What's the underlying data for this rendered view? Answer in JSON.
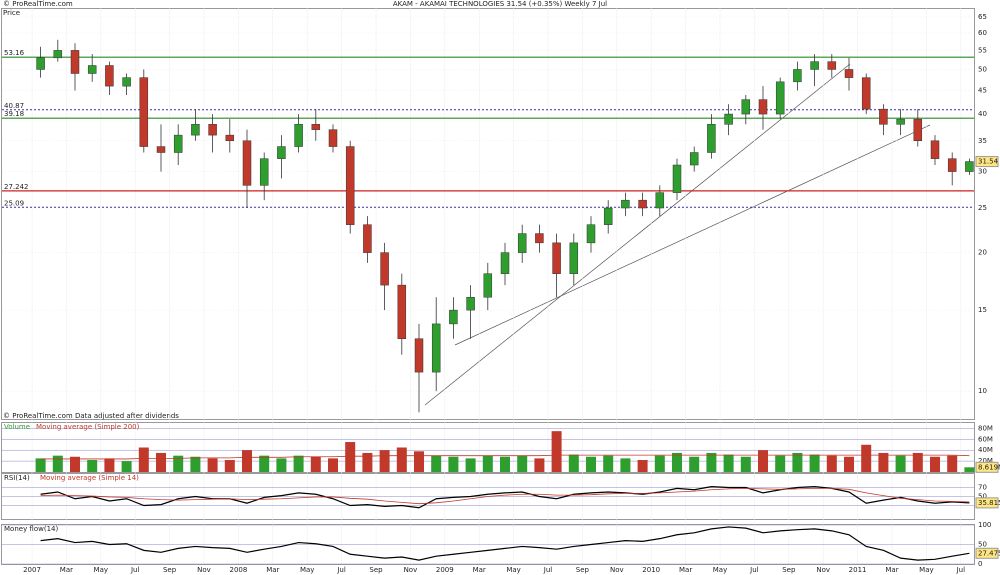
{
  "header": {
    "title": "AKAM - AKAMAI TECHNOLOGIES   31.54 (+0.35%)   Weekly  7 Jul",
    "copyright": "© ProRealTime.com",
    "note": "© ProRealTime.com  Data adjusted after dividends"
  },
  "chart_data": [
    {
      "type": "candlestick",
      "title": "Price",
      "categories": [
        "2007",
        null,
        "Mar",
        null,
        "May",
        null,
        "Jul",
        null,
        "Sep",
        null,
        "Nov",
        null,
        "2008",
        null,
        "Mar",
        null,
        "May",
        null,
        "Jul",
        null,
        "Sep",
        null,
        "Nov",
        null,
        "2009",
        null,
        "Mar",
        null,
        "May",
        null,
        "Jul",
        null,
        "Sep",
        null,
        "Nov",
        null,
        "2010",
        null,
        "Mar",
        null,
        "May",
        null,
        "Jul",
        null,
        "Sep",
        null,
        "Nov",
        null,
        "2011",
        null,
        "Mar",
        null,
        "May",
        null,
        "Jul"
      ],
      "open": [
        50,
        53,
        55,
        49,
        51,
        46,
        48,
        34,
        33,
        36,
        38,
        36,
        35,
        28,
        32,
        34,
        38,
        37,
        34,
        23,
        20,
        17,
        13,
        11,
        14,
        15,
        16,
        18,
        20,
        22,
        21,
        18,
        21,
        23,
        25,
        26,
        25,
        27,
        31,
        33,
        38,
        40,
        43,
        40,
        47,
        50,
        52,
        50,
        48,
        41,
        38,
        39,
        35,
        32,
        30
      ],
      "high": [
        56,
        58,
        57,
        54,
        52,
        49,
        50,
        38,
        38,
        41,
        40,
        39,
        37,
        33,
        36,
        40,
        41,
        38,
        35,
        24,
        21,
        18,
        14,
        16,
        16,
        17,
        19,
        21,
        23,
        23,
        22,
        22,
        24,
        26,
        27,
        27,
        28,
        32,
        34,
        40,
        42,
        44,
        46,
        48,
        52,
        54,
        54,
        53,
        49,
        42,
        41,
        41,
        36,
        33,
        32
      ],
      "low": [
        48,
        52,
        45,
        47,
        44,
        44,
        33,
        30,
        31,
        35,
        33,
        33,
        25,
        26,
        29,
        33,
        35,
        33,
        22,
        19,
        15,
        12,
        9,
        10,
        13,
        13,
        15,
        17,
        19,
        20,
        16,
        17,
        20,
        22,
        24,
        24,
        24,
        26,
        30,
        32,
        36,
        38,
        37,
        39,
        45,
        46,
        48,
        45,
        40,
        36,
        36,
        34,
        31,
        28,
        29.5
      ],
      "close": [
        53,
        55,
        49,
        51,
        46,
        48,
        34,
        33,
        36,
        38,
        36,
        35,
        28,
        32,
        34,
        38,
        37,
        34,
        23,
        20,
        17,
        13,
        11,
        14,
        15,
        16,
        18,
        20,
        22,
        21,
        18,
        21,
        23,
        25,
        26,
        25,
        27,
        31,
        33,
        38,
        40,
        43,
        40,
        47,
        50,
        52,
        50,
        48,
        41,
        38,
        39,
        35,
        32,
        30,
        31.54
      ],
      "up_color": "#2e9e2e",
      "down_color": "#c0392b",
      "log_scale": true,
      "ylim": [
        8.7,
        68
      ],
      "yticks": [
        10,
        15,
        20,
        25,
        30,
        35,
        40,
        45,
        50,
        55,
        60,
        65
      ],
      "levels": [
        {
          "value": 53.16,
          "color": "#2a8a2a",
          "style": "solid"
        },
        {
          "value": 40.87,
          "color": "#3333aa",
          "style": "dotted"
        },
        {
          "value": 39.18,
          "color": "#2a8a2a",
          "style": "solid"
        },
        {
          "value": 27.242,
          "color": "#d02020",
          "style": "solid"
        },
        {
          "value": 25.09,
          "color": "#3333aa",
          "style": "dotted"
        }
      ]
    },
    {
      "type": "bar",
      "series": [
        {
          "name": "Volume",
          "color": "#2e9e2e",
          "values": [
            25,
            30,
            28,
            22,
            25,
            20,
            45,
            35,
            30,
            28,
            25,
            22,
            40,
            30,
            25,
            30,
            28,
            25,
            55,
            35,
            40,
            45,
            38,
            30,
            28,
            25,
            30,
            28,
            30,
            25,
            75,
            32,
            28,
            30,
            25,
            22,
            30,
            35,
            28,
            35,
            32,
            28,
            40,
            30,
            35,
            32,
            30,
            28,
            50,
            35,
            30,
            35,
            28,
            30,
            8.619
          ],
          "value_labels": [
            null,
            null,
            null,
            null,
            null,
            null,
            null,
            null,
            null,
            null,
            null,
            null,
            null,
            null,
            null,
            null,
            null,
            null,
            null,
            null,
            null,
            null,
            null,
            null,
            null,
            null,
            null,
            null,
            null,
            null,
            null,
            null,
            null,
            null,
            null,
            null,
            null,
            null,
            null,
            null,
            null,
            null,
            null,
            null,
            null,
            null,
            null,
            null,
            null,
            null,
            null,
            null,
            null,
            null,
            "8.619M"
          ]
        },
        {
          "name": "Moving average (Simple 200)",
          "color": "#c0392b",
          "values": [
            24,
            24,
            24,
            24,
            24,
            24,
            25,
            25,
            25,
            26,
            26,
            26,
            27,
            27,
            27,
            28,
            28,
            28,
            29,
            29,
            30,
            30,
            30,
            30,
            30,
            30,
            30,
            30,
            30,
            30,
            31,
            31,
            31,
            31,
            31,
            31,
            31,
            31,
            31,
            31,
            31,
            31,
            31,
            31,
            31,
            31,
            31,
            31,
            31,
            31,
            31,
            31,
            31,
            31,
            30
          ]
        }
      ],
      "ylim": [
        0,
        90
      ],
      "yticks": [
        {
          "value": 20,
          "label": "20M"
        },
        {
          "value": 40,
          "label": "40M"
        },
        {
          "value": 60,
          "label": "60M"
        },
        {
          "value": 80,
          "label": "80M"
        }
      ]
    },
    {
      "type": "line",
      "series": [
        {
          "name": "RSI(14)",
          "color": "#000000",
          "values": [
            55,
            60,
            45,
            50,
            40,
            45,
            30,
            32,
            45,
            50,
            45,
            45,
            35,
            48,
            52,
            58,
            55,
            45,
            30,
            32,
            28,
            30,
            25,
            45,
            48,
            50,
            55,
            58,
            60,
            50,
            45,
            55,
            58,
            60,
            58,
            55,
            60,
            68,
            65,
            72,
            70,
            70,
            58,
            65,
            70,
            72,
            68,
            60,
            35,
            42,
            48,
            40,
            35,
            38,
            35.815
          ]
        },
        {
          "name": "Moving average (Simple 14)",
          "color": "#c0392b",
          "values": [
            52,
            53,
            52,
            51,
            49,
            48,
            45,
            43,
            42,
            43,
            44,
            45,
            43,
            44,
            45,
            47,
            49,
            49,
            46,
            44,
            40,
            37,
            34,
            36,
            40,
            45,
            50,
            53,
            55,
            55,
            53,
            53,
            54,
            56,
            57,
            57,
            58,
            60,
            62,
            65,
            67,
            68,
            67,
            66,
            67,
            68,
            68,
            66,
            58,
            52,
            46,
            43,
            40,
            39,
            38
          ]
        }
      ],
      "ylim": [
        0,
        100
      ],
      "yticks": [
        30,
        50,
        70
      ]
    },
    {
      "type": "line",
      "series": [
        {
          "name": "Money flow(14)",
          "color": "#000000",
          "values": [
            60,
            65,
            55,
            58,
            50,
            52,
            35,
            30,
            40,
            45,
            42,
            40,
            30,
            38,
            45,
            55,
            52,
            45,
            25,
            20,
            15,
            18,
            10,
            20,
            25,
            30,
            35,
            40,
            45,
            42,
            38,
            45,
            50,
            55,
            60,
            58,
            65,
            75,
            80,
            90,
            95,
            92,
            80,
            85,
            88,
            90,
            85,
            75,
            45,
            35,
            15,
            10,
            12,
            20,
            27.475
          ]
        }
      ],
      "ylim": [
        0,
        100
      ],
      "yticks": [
        0,
        50,
        100
      ]
    }
  ]
}
